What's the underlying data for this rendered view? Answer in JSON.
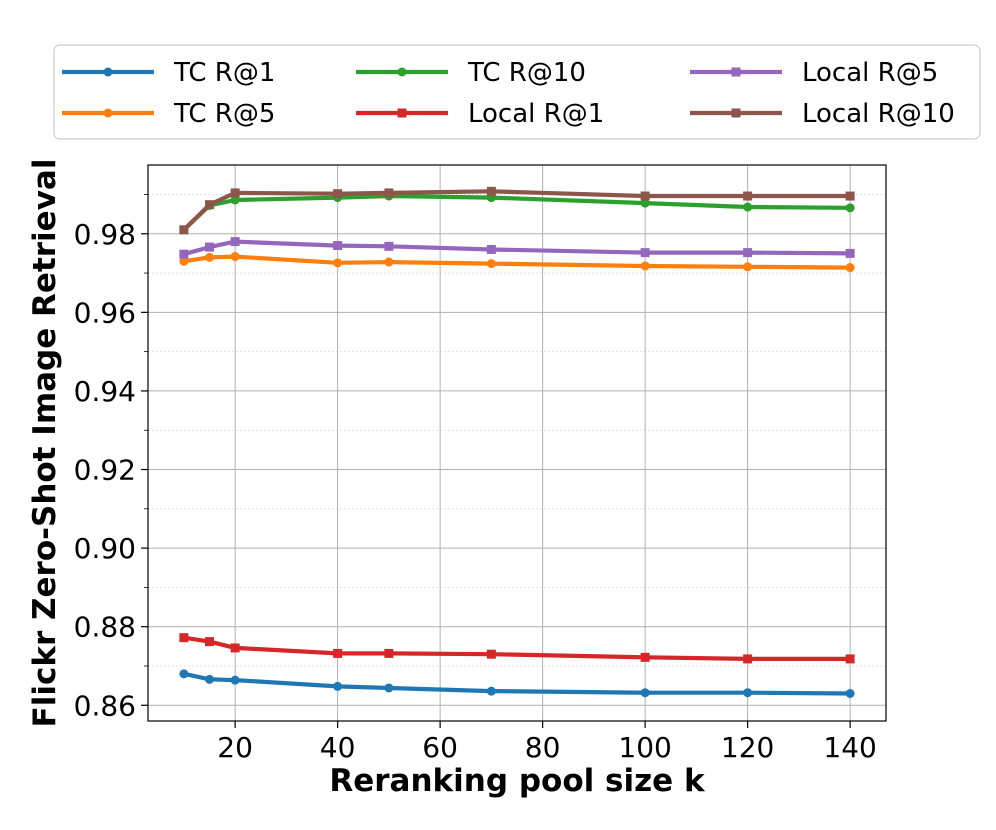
{
  "chart_data": {
    "type": "line",
    "title": "",
    "xlabel": "Reranking pool size k",
    "ylabel": "Flickr Zero-Shot Image Retrieval",
    "xlim": [
      3,
      147
    ],
    "ylim": [
      0.856,
      0.9975
    ],
    "x_ticks": [
      20,
      40,
      60,
      80,
      100,
      120,
      140
    ],
    "y_ticks": [
      0.86,
      0.88,
      0.9,
      0.92,
      0.94,
      0.96,
      0.98
    ],
    "y_tick_labels": [
      "0.86",
      "0.88",
      "0.90",
      "0.92",
      "0.94",
      "0.96",
      "0.98"
    ],
    "grid": true,
    "legend_position": "top",
    "x": [
      10,
      15,
      20,
      40,
      50,
      70,
      100,
      120,
      140
    ],
    "series": [
      {
        "name": "TC R@1",
        "color": "#1f77b4",
        "marker": "circle",
        "values": [
          0.868,
          0.8666,
          0.8664,
          0.8648,
          0.8644,
          0.8636,
          0.8632,
          0.8632,
          0.863
        ]
      },
      {
        "name": "TC R@5",
        "color": "#ff7f0e",
        "marker": "circle",
        "values": [
          0.973,
          0.974,
          0.9742,
          0.9726,
          0.9728,
          0.9724,
          0.9718,
          0.9716,
          0.9714
        ]
      },
      {
        "name": "TC R@10",
        "color": "#2ca02c",
        "marker": "circle",
        "values": [
          0.981,
          0.9872,
          0.9886,
          0.9892,
          0.9896,
          0.9892,
          0.9878,
          0.9868,
          0.9866
        ]
      },
      {
        "name": "Local R@1",
        "color": "#d62728",
        "marker": "square",
        "values": [
          0.8772,
          0.8762,
          0.8746,
          0.8732,
          0.8732,
          0.873,
          0.8722,
          0.8718,
          0.8718
        ]
      },
      {
        "name": "Local R@5",
        "color": "#9467bd",
        "marker": "square",
        "values": [
          0.9748,
          0.9766,
          0.978,
          0.977,
          0.9768,
          0.976,
          0.9752,
          0.9752,
          0.975
        ]
      },
      {
        "name": "Local R@10",
        "color": "#8c564b",
        "marker": "square",
        "values": [
          0.981,
          0.9874,
          0.9904,
          0.9902,
          0.9904,
          0.9908,
          0.9896,
          0.9896,
          0.9896
        ]
      }
    ]
  }
}
